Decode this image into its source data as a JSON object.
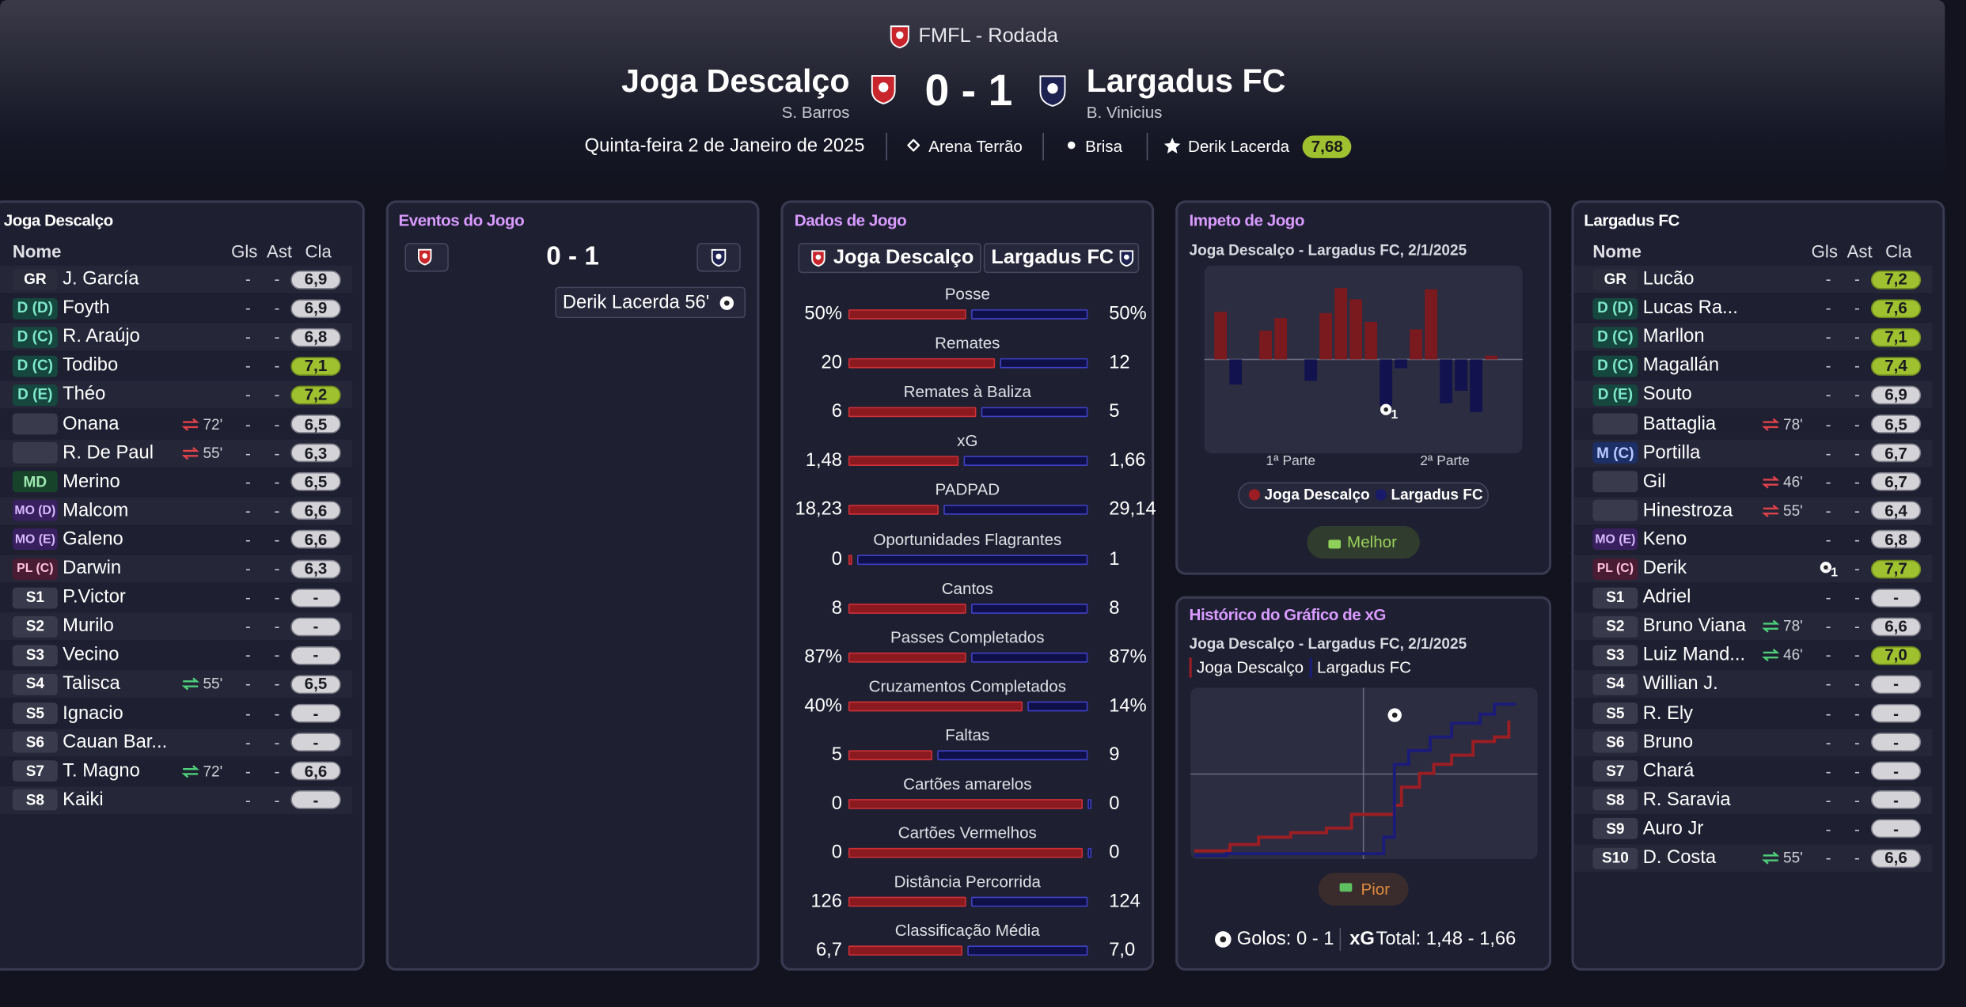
{
  "header": {
    "competition": "FMFL - Rodada",
    "home_team": "Joga Descalço",
    "home_manager": "S. Barros",
    "score": "0 - 1",
    "away_team": "Largadus FC",
    "away_manager": "B. Vinicius",
    "date": "Quinta-feira 2 de Janeiro de 2025",
    "stadium": "Arena Terrão",
    "weather": "Brisa",
    "player_of_match": "Derik Lacerda",
    "player_of_match_rating": "7,68"
  },
  "columns": [
    "Nome",
    "Gls",
    "Ast",
    "Cla"
  ],
  "home": {
    "title": "Joga Descalço",
    "players": [
      {
        "pos": "GR",
        "name": "J. García",
        "gls": "-",
        "ast": "-",
        "cla": "6,9"
      },
      {
        "pos": "D (D)",
        "name": "Foyth",
        "gls": "-",
        "ast": "-",
        "cla": "6,9"
      },
      {
        "pos": "D (C)",
        "name": "R. Araújo",
        "gls": "-",
        "ast": "-",
        "cla": "6,8"
      },
      {
        "pos": "D (C)",
        "name": "Todibo",
        "gls": "-",
        "ast": "-",
        "cla": "7,1"
      },
      {
        "pos": "D (E)",
        "name": "Théo",
        "gls": "-",
        "ast": "-",
        "cla": "7,2"
      },
      {
        "pos": null,
        "name": "Onana",
        "sub_out": "72'",
        "gls": "-",
        "ast": "-",
        "cla": "6,5"
      },
      {
        "pos": null,
        "name": "R. De Paul",
        "sub_out": "55'",
        "gls": "-",
        "ast": "-",
        "cla": "6,3"
      },
      {
        "pos": "MD",
        "name": "Merino",
        "gls": "-",
        "ast": "-",
        "cla": "6,5"
      },
      {
        "pos": "MO (D)",
        "name": "Malcom",
        "gls": "-",
        "ast": "-",
        "cla": "6,6"
      },
      {
        "pos": "MO (E)",
        "name": "Galeno",
        "gls": "-",
        "ast": "-",
        "cla": "6,6"
      },
      {
        "pos": "PL (C)",
        "name": "Darwin",
        "gls": "-",
        "ast": "-",
        "cla": "6,3"
      },
      {
        "pos": "S1",
        "name": "P.Victor",
        "gls": "-",
        "ast": "-",
        "cla": "-"
      },
      {
        "pos": "S2",
        "name": "Murilo",
        "gls": "-",
        "ast": "-",
        "cla": "-"
      },
      {
        "pos": "S3",
        "name": "Vecino",
        "gls": "-",
        "ast": "-",
        "cla": "-"
      },
      {
        "pos": "S4",
        "name": "Talisca",
        "sub_in": "55'",
        "gls": "-",
        "ast": "-",
        "cla": "6,5"
      },
      {
        "pos": "S5",
        "name": "Ignacio",
        "gls": "-",
        "ast": "-",
        "cla": "-"
      },
      {
        "pos": "S6",
        "name": "Cauan Bar...",
        "gls": "-",
        "ast": "-",
        "cla": "-"
      },
      {
        "pos": "S7",
        "name": "T. Magno",
        "sub_in": "72'",
        "gls": "-",
        "ast": "-",
        "cla": "6,6"
      },
      {
        "pos": "S8",
        "name": "Kaiki",
        "gls": "-",
        "ast": "-",
        "cla": "-"
      }
    ]
  },
  "away": {
    "title": "Largadus FC",
    "players": [
      {
        "pos": "GR",
        "name": "Lucão",
        "gls": "-",
        "ast": "-",
        "cla": "7,2"
      },
      {
        "pos": "D (D)",
        "name": "Lucas Ra...",
        "gls": "-",
        "ast": "-",
        "cla": "7,6"
      },
      {
        "pos": "D (C)",
        "name": "Marllon",
        "gls": "-",
        "ast": "-",
        "cla": "7,1"
      },
      {
        "pos": "D (C)",
        "name": "Magallán",
        "gls": "-",
        "ast": "-",
        "cla": "7,4"
      },
      {
        "pos": "D (E)",
        "name": "Souto",
        "gls": "-",
        "ast": "-",
        "cla": "6,9"
      },
      {
        "pos": null,
        "name": "Battaglia",
        "sub_out": "78'",
        "gls": "-",
        "ast": "-",
        "cla": "6,5"
      },
      {
        "pos": "M (C)",
        "name": "Portilla",
        "gls": "-",
        "ast": "-",
        "cla": "6,7"
      },
      {
        "pos": null,
        "name": "Gil",
        "sub_out": "46'",
        "gls": "-",
        "ast": "-",
        "cla": "6,7"
      },
      {
        "pos": null,
        "name": "Hinestroza",
        "sub_out": "55'",
        "gls": "-",
        "ast": "-",
        "cla": "6,4"
      },
      {
        "pos": "MO (E)",
        "name": "Keno",
        "gls": "-",
        "ast": "-",
        "cla": "6,8"
      },
      {
        "pos": "PL (C)",
        "name": "Derik",
        "goals": "1",
        "gls": "-",
        "ast": "-",
        "cla": "7,7"
      },
      {
        "pos": "S1",
        "name": "Adriel",
        "gls": "-",
        "ast": "-",
        "cla": "-"
      },
      {
        "pos": "S2",
        "name": "Bruno Viana",
        "sub_in": "78'",
        "gls": "-",
        "ast": "-",
        "cla": "6,6"
      },
      {
        "pos": "S3",
        "name": "Luiz Mand...",
        "sub_in": "46'",
        "gls": "-",
        "ast": "-",
        "cla": "7,0"
      },
      {
        "pos": "S4",
        "name": "Willian J.",
        "gls": "-",
        "ast": "-",
        "cla": "-"
      },
      {
        "pos": "S5",
        "name": "R. Ely",
        "gls": "-",
        "ast": "-",
        "cla": "-"
      },
      {
        "pos": "S6",
        "name": "Bruno",
        "gls": "-",
        "ast": "-",
        "cla": "-"
      },
      {
        "pos": "S7",
        "name": "Chará",
        "gls": "-",
        "ast": "-",
        "cla": "-"
      },
      {
        "pos": "S8",
        "name": "R. Saravia",
        "gls": "-",
        "ast": "-",
        "cla": "-"
      },
      {
        "pos": "S9",
        "name": "Auro Jr",
        "gls": "-",
        "ast": "-",
        "cla": "-"
      },
      {
        "pos": "S10",
        "name": "D. Costa",
        "sub_in": "55'",
        "gls": "-",
        "ast": "-",
        "cla": "6,6"
      }
    ]
  },
  "events": {
    "title": "Eventos do Jogo",
    "score": "0 - 1",
    "items": [
      {
        "text": "Derik Lacerda 56'"
      }
    ]
  },
  "stats": {
    "title": "Dados de Jogo",
    "home_tab": "Joga Descalço",
    "away_tab": "Largadus FC",
    "rows": [
      {
        "label": "Posse",
        "home": "50%",
        "away": "50%"
      },
      {
        "label": "Remates",
        "home": "20",
        "away": "12"
      },
      {
        "label": "Remates à Baliza",
        "home": "6",
        "away": "5"
      },
      {
        "label": "xG",
        "home": "1,48",
        "away": "1,66"
      },
      {
        "label": "PADPAD",
        "home": "18,23",
        "away": "29,14"
      },
      {
        "label": "Oportunidades Flagrantes",
        "home": "0",
        "away": "1"
      },
      {
        "label": "Cantos",
        "home": "8",
        "away": "8"
      },
      {
        "label": "Passes Completados",
        "home": "87%",
        "away": "87%"
      },
      {
        "label": "Cruzamentos Completados",
        "home": "40%",
        "away": "14%"
      },
      {
        "label": "Faltas",
        "home": "5",
        "away": "9"
      },
      {
        "label": "Cartões amarelos",
        "home": "0",
        "away": "0"
      },
      {
        "label": "Cartões Vermelhos",
        "home": "0",
        "away": "0"
      },
      {
        "label": "Distância Percorrida",
        "home": "126",
        "away": "124"
      },
      {
        "label": "Classificação Média",
        "home": "6,7",
        "away": "7,0"
      }
    ]
  },
  "momentum": {
    "title": "Impeto de Jogo",
    "subtitle": "Joga Descalço - Largadus FC, 2/1/2025",
    "ylim": [
      -75,
      75
    ],
    "home_color": "#7a1a1f",
    "away_color": "#12124f",
    "values": [
      38,
      -20,
      0,
      23,
      33,
      0,
      -17,
      37,
      57,
      48,
      30,
      -37,
      -7,
      24,
      56,
      -35,
      -25,
      -42,
      3,
      0
    ],
    "goal_index": 11,
    "goal_label": "1",
    "period_labels": [
      "1ª Parte",
      "2ª Parte"
    ],
    "legend": [
      {
        "name": "Joga Descalço",
        "color": "#9a1e24"
      },
      {
        "name": "Largadus FC",
        "color": "#1a1a6a"
      }
    ],
    "button": "Melhor"
  },
  "xg": {
    "title": "Histórico do Gráfico de xG",
    "subtitle": "Joga Descalço - Largadus FC, 2/1/2025",
    "xlim": [
      0,
      95
    ],
    "ylim": [
      0,
      1.8
    ],
    "goal_minute": 56,
    "series": [
      {
        "name": "Joga Descalço",
        "color": "#9a1e24",
        "x": [
          0,
          10,
          10,
          18,
          18,
          27,
          27,
          37,
          37,
          44,
          44,
          56,
          56,
          58,
          58,
          63,
          63,
          67,
          67,
          72,
          72,
          78,
          78,
          84,
          84,
          88,
          88
        ],
        "values": [
          0.05,
          0.05,
          0.12,
          0.12,
          0.2,
          0.2,
          0.25,
          0.25,
          0.3,
          0.3,
          0.45,
          0.45,
          0.55,
          0.55,
          0.75,
          0.75,
          0.9,
          0.9,
          1.0,
          1.0,
          1.1,
          1.1,
          1.25,
          1.25,
          1.3,
          1.3,
          1.48
        ]
      },
      {
        "name": "Largadus FC",
        "color": "#1c1c78",
        "x": [
          0,
          9,
          9,
          53,
          53,
          56,
          56,
          60,
          60,
          66,
          66,
          72,
          72,
          80,
          80,
          84,
          84,
          90
        ],
        "values": [
          0,
          0,
          0.02,
          0.02,
          0.2,
          0.2,
          1.0,
          1.0,
          1.15,
          1.15,
          1.3,
          1.3,
          1.45,
          1.45,
          1.55,
          1.55,
          1.66,
          1.66
        ]
      }
    ],
    "button": "Pior",
    "summary_goals": "Golos: 0 - 1",
    "summary_xg_label": "xG",
    "summary_xg": "Total: 1,48 - 1,66"
  }
}
